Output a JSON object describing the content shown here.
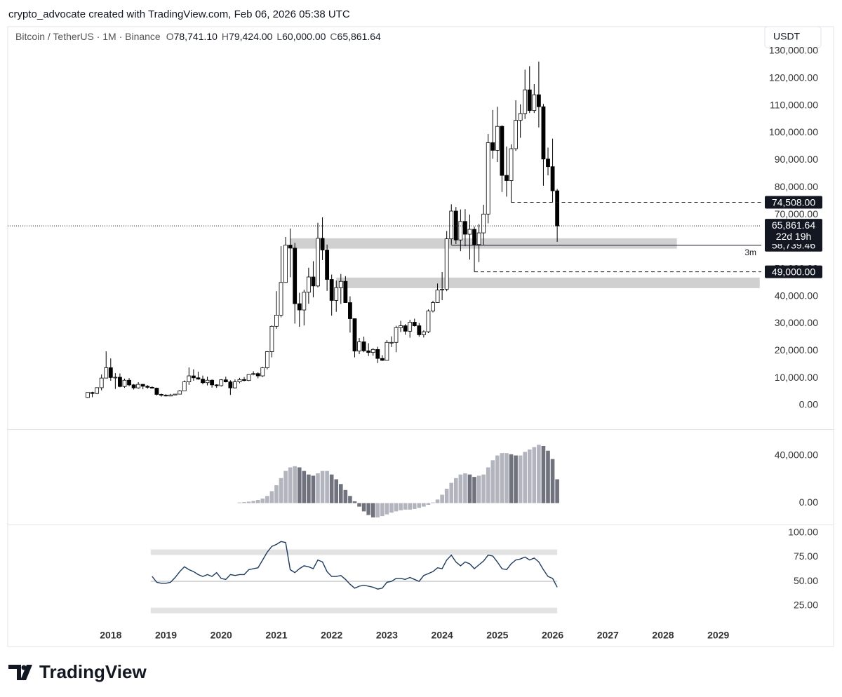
{
  "header": {
    "credit": "crypto_advocate created with TradingView.com, Feb 06, 2026 05:38 UTC",
    "symbol": "Bitcoin / TetherUS · 1M · Binance",
    "legend": [
      {
        "key": "O",
        "value": "78,741.10"
      },
      {
        "key": "H",
        "value": "79,424.00"
      },
      {
        "key": "L",
        "value": "60,000.00"
      },
      {
        "key": "C",
        "value": "65,861.64"
      }
    ],
    "currency": "USDT"
  },
  "footer": {
    "brand": "TradingView"
  },
  "chart_data": {
    "type": "candlestick",
    "x": [
      "2017-08",
      "2017-09",
      "2017-10",
      "2017-11",
      "2017-12",
      "2018-01",
      "2018-02",
      "2018-03",
      "2018-04",
      "2018-05",
      "2018-06",
      "2018-07",
      "2018-08",
      "2018-09",
      "2018-10",
      "2018-11",
      "2018-12",
      "2019-01",
      "2019-02",
      "2019-03",
      "2019-04",
      "2019-05",
      "2019-06",
      "2019-07",
      "2019-08",
      "2019-09",
      "2019-10",
      "2019-11",
      "2019-12",
      "2020-01",
      "2020-02",
      "2020-03",
      "2020-04",
      "2020-05",
      "2020-06",
      "2020-07",
      "2020-08",
      "2020-09",
      "2020-10",
      "2020-11",
      "2020-12",
      "2021-01",
      "2021-02",
      "2021-03",
      "2021-04",
      "2021-05",
      "2021-06",
      "2021-07",
      "2021-08",
      "2021-09",
      "2021-10",
      "2021-11",
      "2021-12",
      "2022-01",
      "2022-02",
      "2022-03",
      "2022-04",
      "2022-05",
      "2022-06",
      "2022-07",
      "2022-08",
      "2022-09",
      "2022-10",
      "2022-11",
      "2022-12",
      "2023-01",
      "2023-02",
      "2023-03",
      "2023-04",
      "2023-05",
      "2023-06",
      "2023-07",
      "2023-08",
      "2023-09",
      "2023-10",
      "2023-11",
      "2023-12",
      "2024-01",
      "2024-02",
      "2024-03",
      "2024-04",
      "2024-05",
      "2024-06",
      "2024-07",
      "2024-08",
      "2024-09",
      "2024-10",
      "2024-11",
      "2024-12",
      "2025-01",
      "2025-02",
      "2025-03",
      "2025-04",
      "2025-05",
      "2025-06",
      "2025-07",
      "2025-08",
      "2025-09",
      "2025-10",
      "2025-11",
      "2025-12",
      "2026-01",
      "2026-02"
    ],
    "ohlc": [
      [
        2870,
        4750,
        2700,
        4700
      ],
      [
        4700,
        4980,
        2970,
        4340
      ],
      [
        4340,
        6470,
        4100,
        6470
      ],
      [
        6450,
        11300,
        5500,
        10000
      ],
      [
        10000,
        19800,
        9900,
        13800
      ],
      [
        13800,
        17200,
        9000,
        10200
      ],
      [
        10200,
        11800,
        6000,
        10300
      ],
      [
        10300,
        11700,
        6600,
        6900
      ],
      [
        6900,
        9800,
        6400,
        9200
      ],
      [
        9200,
        10000,
        7000,
        7500
      ],
      [
        7500,
        7800,
        5800,
        6400
      ],
      [
        6400,
        8500,
        6100,
        7700
      ],
      [
        7700,
        7800,
        5900,
        7000
      ],
      [
        7000,
        7400,
        6100,
        6600
      ],
      [
        6600,
        7000,
        6200,
        6300
      ],
      [
        6300,
        6500,
        3600,
        4000
      ],
      [
        4000,
        4300,
        3200,
        3700
      ],
      [
        3700,
        4100,
        3300,
        3400
      ],
      [
        3400,
        4200,
        3400,
        3800
      ],
      [
        3800,
        4100,
        3700,
        4100
      ],
      [
        4100,
        5600,
        4100,
        5300
      ],
      [
        5300,
        9100,
        5300,
        8600
      ],
      [
        8600,
        13900,
        7500,
        10800
      ],
      [
        10800,
        13200,
        9000,
        10100
      ],
      [
        10100,
        12300,
        9400,
        9600
      ],
      [
        9600,
        10900,
        7700,
        8300
      ],
      [
        8300,
        10500,
        7300,
        9200
      ],
      [
        9200,
        9500,
        6500,
        7500
      ],
      [
        7500,
        7700,
        6400,
        7200
      ],
      [
        7200,
        9600,
        6900,
        9350
      ],
      [
        9350,
        10500,
        8400,
        8600
      ],
      [
        8600,
        9200,
        3800,
        6400
      ],
      [
        6400,
        9500,
        6200,
        8600
      ],
      [
        8600,
        10100,
        8100,
        9450
      ],
      [
        9450,
        10400,
        8800,
        9100
      ],
      [
        9100,
        11400,
        8900,
        11300
      ],
      [
        11300,
        12500,
        11000,
        11650
      ],
      [
        11650,
        12100,
        9900,
        10800
      ],
      [
        10800,
        14100,
        10400,
        13800
      ],
      [
        13800,
        19900,
        13200,
        19700
      ],
      [
        19700,
        29300,
        17600,
        29000
      ],
      [
        29000,
        41900,
        28100,
        33100
      ],
      [
        33100,
        58400,
        32300,
        45100
      ],
      [
        45100,
        61800,
        45000,
        58800
      ],
      [
        58800,
        64900,
        47000,
        57700
      ],
      [
        57700,
        59600,
        30000,
        37300
      ],
      [
        37300,
        41300,
        28800,
        35000
      ],
      [
        35000,
        42400,
        29300,
        41500
      ],
      [
        41500,
        50500,
        37300,
        47100
      ],
      [
        47100,
        52900,
        39600,
        43800
      ],
      [
        43800,
        67000,
        43300,
        61300
      ],
      [
        61300,
        69000,
        53300,
        57000
      ],
      [
        57000,
        59000,
        42000,
        46200
      ],
      [
        46200,
        48000,
        32900,
        38500
      ],
      [
        38500,
        45800,
        34300,
        43200
      ],
      [
        43200,
        48200,
        37200,
        45500
      ],
      [
        45500,
        47400,
        37600,
        37700
      ],
      [
        37700,
        40000,
        26700,
        31800
      ],
      [
        31800,
        31900,
        17600,
        19900
      ],
      [
        19900,
        24700,
        18800,
        23300
      ],
      [
        23300,
        25200,
        19500,
        20000
      ],
      [
        20000,
        22800,
        18100,
        19400
      ],
      [
        19400,
        21000,
        18200,
        20500
      ],
      [
        20500,
        21500,
        15500,
        17200
      ],
      [
        17200,
        18400,
        16300,
        16500
      ],
      [
        16500,
        23900,
        16500,
        23100
      ],
      [
        23100,
        25300,
        21400,
        23100
      ],
      [
        23100,
        29200,
        19500,
        28500
      ],
      [
        28500,
        31000,
        26900,
        29200
      ],
      [
        29200,
        29800,
        25900,
        27200
      ],
      [
        27200,
        31400,
        24800,
        30500
      ],
      [
        30500,
        31800,
        28900,
        29200
      ],
      [
        29200,
        30200,
        25200,
        25900
      ],
      [
        25900,
        27500,
        24900,
        27000
      ],
      [
        27000,
        35200,
        26500,
        34600
      ],
      [
        34600,
        38400,
        34100,
        37700
      ],
      [
        37700,
        44700,
        37600,
        42300
      ],
      [
        42300,
        48900,
        38600,
        42600
      ],
      [
        42600,
        64000,
        41900,
        61100
      ],
      [
        61100,
        73800,
        59000,
        71300
      ],
      [
        71300,
        72800,
        59200,
        60700
      ],
      [
        60700,
        71900,
        56600,
        67500
      ],
      [
        67500,
        72000,
        58400,
        62800
      ],
      [
        62800,
        70000,
        53500,
        64600
      ],
      [
        64600,
        65600,
        49000,
        59000
      ],
      [
        59000,
        66500,
        52600,
        63300
      ],
      [
        63300,
        73600,
        58900,
        70200
      ],
      [
        70200,
        99600,
        66800,
        96400
      ],
      [
        96400,
        108400,
        90500,
        93600
      ],
      [
        93600,
        109600,
        89300,
        102400
      ],
      [
        102400,
        102800,
        78300,
        84400
      ],
      [
        84400,
        95000,
        76600,
        82500
      ],
      [
        82500,
        95800,
        74500,
        94200
      ],
      [
        94200,
        112000,
        93400,
        104600
      ],
      [
        104600,
        110500,
        98200,
        107100
      ],
      [
        107100,
        123200,
        105100,
        115800
      ],
      [
        115800,
        124500,
        107300,
        108200
      ],
      [
        108200,
        117900,
        107300,
        114000
      ],
      [
        114000,
        126200,
        102000,
        109600
      ],
      [
        109600,
        110600,
        80600,
        90400
      ],
      [
        90400,
        94600,
        84400,
        87600
      ],
      [
        87600,
        97900,
        74500,
        78741.1
      ],
      [
        78741.1,
        79424,
        60000,
        65861.64
      ]
    ],
    "colors": {
      "up": "#ffffff",
      "down": "#000000",
      "wick": "#000000"
    },
    "ylim": [
      -8750,
      139000
    ],
    "yticks": [
      {
        "value": 0,
        "label": "0.00"
      },
      {
        "value": 10000,
        "label": "10,000.00"
      },
      {
        "value": 20000,
        "label": "20,000.00"
      },
      {
        "value": 30000,
        "label": "30,000.00"
      },
      {
        "value": 40000,
        "label": "40,000.00"
      },
      {
        "value": 50000,
        "label": "50,000.00"
      },
      {
        "value": 60000,
        "label": "60,000.00"
      },
      {
        "value": 70000,
        "label": "70,000.00"
      },
      {
        "value": 80000,
        "label": "80,000.00"
      },
      {
        "value": 90000,
        "label": "90,000.00"
      },
      {
        "value": 100000,
        "label": "100,000.00"
      },
      {
        "value": 110000,
        "label": "110,000.00"
      },
      {
        "value": 120000,
        "label": "120,000.00"
      },
      {
        "value": 130000,
        "label": "130,000.00"
      }
    ],
    "xticks": [
      {
        "value": "2018-01",
        "label": "2018"
      },
      {
        "value": "2019-01",
        "label": "2019"
      },
      {
        "value": "2020-01",
        "label": "2020"
      },
      {
        "value": "2021-01",
        "label": "2021"
      },
      {
        "value": "2022-01",
        "label": "2022"
      },
      {
        "value": "2023-01",
        "label": "2023"
      },
      {
        "value": "2024-01",
        "label": "2024"
      },
      {
        "value": "2025-01",
        "label": "2025"
      },
      {
        "value": "2026-01",
        "label": "2026"
      },
      {
        "value": "2027-01",
        "label": "2027"
      },
      {
        "value": "2028-01",
        "label": "2028"
      },
      {
        "value": "2029-01",
        "label": "2029"
      }
    ],
    "grid": false,
    "zones": [
      {
        "low": 57500,
        "high": 61300,
        "from": "2021-04",
        "to": "2028-04",
        "color": "#c8c8c8"
      },
      {
        "low": 43000,
        "high": 46900,
        "from": "2022-02",
        "to": "2029-10",
        "color": "#c8c8c8"
      }
    ],
    "levels": [
      {
        "value": 74508,
        "label": "74,508.00",
        "from": "2025-04",
        "style": "dashed"
      },
      {
        "value": 58739.46,
        "label": "58,739.46",
        "from": "2024-03",
        "style": "solid",
        "note": "3m"
      },
      {
        "value": 49000,
        "label": "49,000.00",
        "from": "2024-08",
        "style": "dashed"
      }
    ],
    "last_price": {
      "value": 65861.64,
      "label": "65,861.64",
      "countdown": "22d 19h"
    },
    "indicators": [
      {
        "type": "histogram",
        "colors": {
          "rising": "#b2b5be",
          "falling": "#70737d"
        },
        "ylim": [
          -18000,
          58000
        ],
        "yticks": [
          {
            "value": 0,
            "label": "0.00"
          },
          {
            "value": 40000,
            "label": "40,000.00"
          }
        ],
        "values": [
          null,
          null,
          null,
          null,
          null,
          null,
          null,
          null,
          null,
          null,
          null,
          null,
          null,
          null,
          null,
          null,
          null,
          null,
          null,
          null,
          null,
          null,
          null,
          null,
          null,
          null,
          null,
          null,
          null,
          null,
          null,
          null,
          null,
          500,
          800,
          1200,
          1800,
          2600,
          3800,
          6000,
          10000,
          15000,
          21000,
          27000,
          30000,
          31000,
          30000,
          27000,
          24000,
          23000,
          25000,
          27000,
          27000,
          24000,
          20000,
          16000,
          11000,
          6000,
          1500,
          -3000,
          -7000,
          -10000,
          -12000,
          -12000,
          -11000,
          -9500,
          -8000,
          -7000,
          -6000,
          -5500,
          -5500,
          -5000,
          -4000,
          -3000,
          -1500,
          500,
          3000,
          7000,
          12000,
          17000,
          21000,
          24000,
          25000,
          24000,
          22000,
          23000,
          24000,
          30000,
          36000,
          40000,
          42000,
          42000,
          41000,
          40000,
          40000,
          43000,
          45000,
          47000,
          49000,
          48000,
          44000,
          37000,
          20000
        ]
      },
      {
        "type": "line",
        "color": "#1c3a5e",
        "ylim": [
          6,
          101.3
        ],
        "yticks": [
          {
            "value": 25,
            "label": "25.00"
          },
          {
            "value": 50,
            "label": "50.00"
          },
          {
            "value": 75,
            "label": "75.00"
          },
          {
            "value": 100,
            "label": "100.00"
          }
        ],
        "bands": [
          20,
          80
        ],
        "midline": 50,
        "values": [
          null,
          null,
          null,
          null,
          null,
          null,
          null,
          null,
          null,
          null,
          null,
          null,
          null,
          null,
          55,
          49,
          48,
          48,
          49,
          54,
          60,
          65,
          62,
          60,
          57,
          55,
          57,
          55,
          59,
          53,
          52,
          57,
          56,
          57,
          57,
          62,
          63,
          64,
          72,
          80,
          86,
          88,
          91,
          90,
          62,
          59,
          63,
          66,
          65,
          63,
          72,
          70,
          60,
          55,
          55,
          56,
          52,
          47,
          43,
          45,
          46,
          45,
          44,
          42,
          43,
          49,
          50,
          53,
          53,
          52,
          54,
          52,
          50,
          56,
          58,
          60,
          64,
          63,
          72,
          77,
          70,
          66,
          70,
          68,
          63,
          67,
          71,
          77,
          76,
          70,
          63,
          62,
          68,
          72,
          73,
          75,
          72,
          74,
          70,
          62,
          55,
          53,
          44
        ]
      }
    ]
  }
}
